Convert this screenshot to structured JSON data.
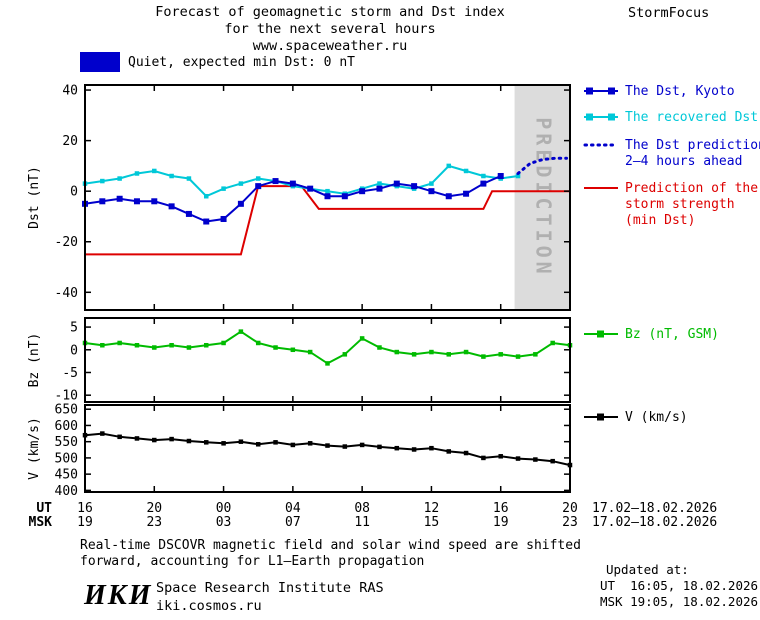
{
  "header": {
    "title_line1": "Forecast of geomagnetic storm and Dst index",
    "title_line2": "for the next several hours",
    "title_line3": "www.spaceweather.ru",
    "brand": "StormFocus"
  },
  "top_legend": {
    "label": "Quiet, expected min Dst: 0 nT"
  },
  "colors": {
    "dst": "#0000cc",
    "recovered": "#00c8d8",
    "prediction": "#0000cc",
    "storm": "#dd0000",
    "bz": "#00bb00",
    "v": "#000000",
    "band": "#dcdcdc",
    "band_text": "#b0b0b0",
    "quiet_swatch": "#0000cc"
  },
  "legend": {
    "dst_kyoto": "The Dst, Kyoto",
    "recovered": "The recovered Dst",
    "prediction_l1": "The Dst prediction",
    "prediction_l2": "2–4 hours ahead",
    "storm_l1": "Prediction of the",
    "storm_l2": "storm strength",
    "storm_l3": "(min Dst)",
    "bz": "Bz (nT, GSM)",
    "v": "V (km/s)"
  },
  "chart_data": [
    {
      "id": "dst",
      "type": "line",
      "ylabel": "Dst (nT)",
      "ylim": [
        -47,
        42
      ],
      "yticks": [
        40,
        20,
        0,
        -20,
        -40
      ],
      "prediction_band": {
        "from_hour": 24.8,
        "to_hour": 28,
        "label": "PREDICTION"
      },
      "series": [
        {
          "name": "Prediction of the storm strength (min Dst)",
          "color_key": "storm",
          "x": [
            0,
            9,
            10,
            12.5,
            13.5,
            23,
            23.5,
            28
          ],
          "values": [
            -25,
            -25,
            2,
            2,
            -7,
            -7,
            0,
            0
          ]
        },
        {
          "name": "The recovered Dst",
          "color_key": "recovered",
          "marker": "square",
          "values": [
            3,
            4,
            5,
            7,
            8,
            6,
            5,
            -2,
            1,
            3,
            5,
            4,
            2,
            1,
            0,
            -1,
            1,
            3,
            2,
            1,
            3,
            10,
            8,
            6,
            5,
            6
          ]
        },
        {
          "name": "The Dst, Kyoto",
          "color_key": "dst",
          "marker": "square",
          "values": [
            -5,
            -4,
            -3,
            -4,
            -4,
            -6,
            -9,
            -12,
            -11,
            -5,
            2,
            4,
            3,
            1,
            -2,
            -2,
            0,
            1,
            3,
            2,
            0,
            -2,
            -1,
            3,
            6
          ]
        },
        {
          "name": "The Dst prediction 2–4 hours ahead",
          "color_key": "prediction",
          "style": "dotted",
          "x": [
            25,
            25.7,
            26.4,
            27.1,
            27.8
          ],
          "values": [
            7,
            11,
            12.5,
            13,
            13
          ]
        }
      ]
    },
    {
      "id": "bz",
      "type": "line",
      "ylabel": "Bz (nT)",
      "ylim": [
        -11.5,
        7
      ],
      "yticks": [
        5,
        0,
        -5,
        -10
      ],
      "series": [
        {
          "name": "Bz (nT, GSM)",
          "color_key": "bz",
          "marker": "square",
          "values": [
            1.5,
            1,
            1.5,
            1,
            0.5,
            1,
            0.5,
            1,
            1.5,
            4,
            1.5,
            0.5,
            0,
            -0.5,
            -3,
            -1,
            2.5,
            0.5,
            -0.5,
            -1,
            -0.5,
            -1,
            -0.5,
            -1.5,
            -1,
            -1.5,
            -1,
            1.5,
            1
          ]
        }
      ]
    },
    {
      "id": "v",
      "type": "line",
      "ylabel": "V (km/s)",
      "ylim": [
        395,
        663
      ],
      "yticks": [
        650,
        600,
        550,
        500,
        450,
        400
      ],
      "series": [
        {
          "name": "V (km/s)",
          "color_key": "v",
          "marker": "square",
          "values": [
            570,
            575,
            565,
            560,
            555,
            558,
            552,
            548,
            545,
            550,
            542,
            548,
            540,
            545,
            538,
            535,
            540,
            534,
            530,
            526,
            530,
            520,
            515,
            500,
            505,
            498,
            495,
            490,
            478
          ]
        }
      ]
    }
  ],
  "xaxis": {
    "hours": [
      0,
      4,
      8,
      12,
      16,
      20,
      24,
      28
    ],
    "ut_labels": [
      "16",
      "20",
      "00",
      "04",
      "08",
      "12",
      "16",
      "20"
    ],
    "msk_labels": [
      "19",
      "23",
      "03",
      "07",
      "11",
      "15",
      "19",
      "23"
    ],
    "ut_prefix": "UT",
    "msk_prefix": "MSK",
    "ut_date": "17.02–18.02.2026",
    "msk_date": "17.02–18.02.2026"
  },
  "footer": {
    "note_line1": "Real-time DSCOVR magnetic field and solar wind speed are shifted",
    "note_line2": "forward, accounting for L1–Earth propagation",
    "updated_label": "Updated at:",
    "updated_ut": "UT  16:05, 18.02.2026",
    "updated_msk": "MSK 19:05, 18.02.2026",
    "logo": "ИКИ",
    "institute": "Space Research Institute RAS",
    "site": "iki.cosmos.ru"
  }
}
